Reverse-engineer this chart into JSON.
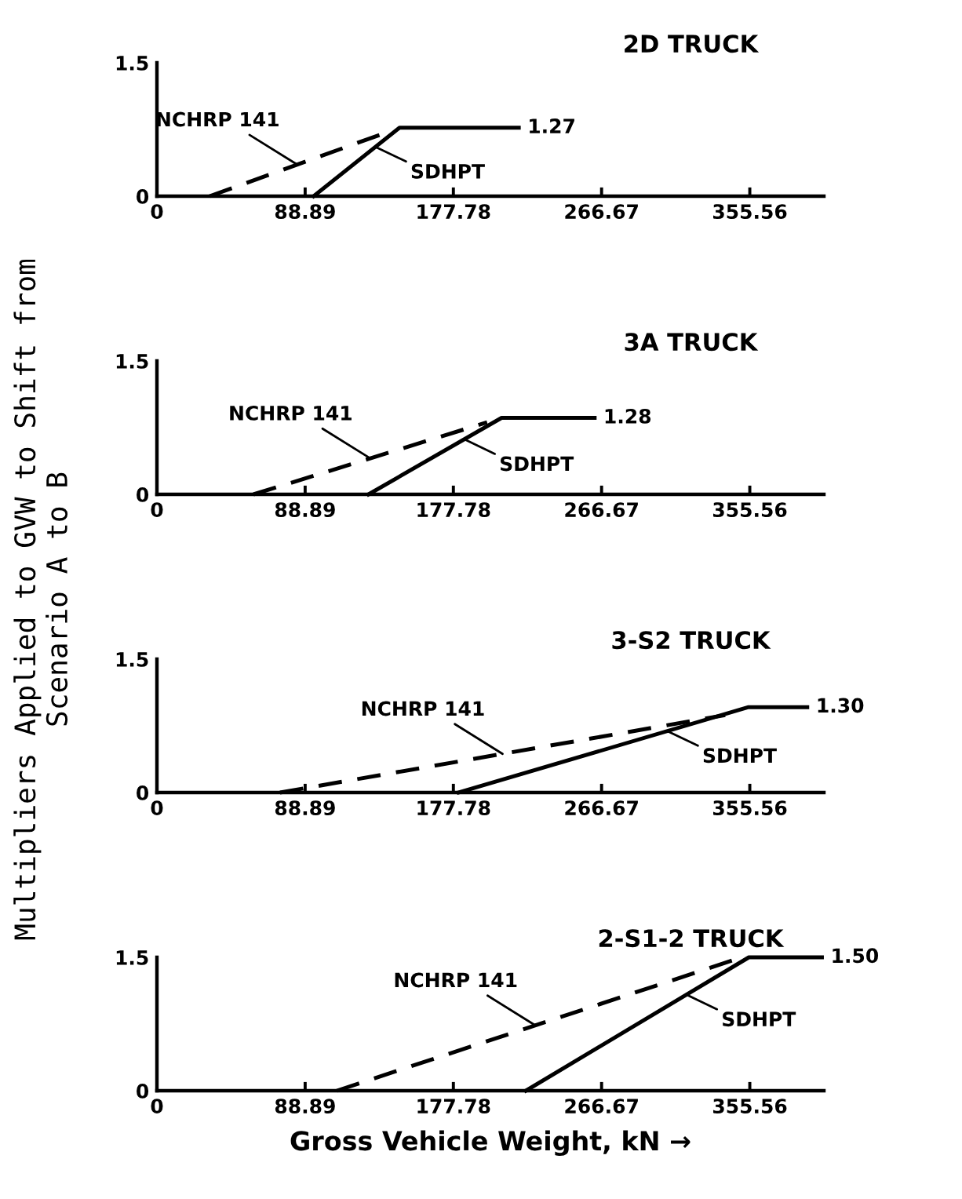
{
  "chart_data": [
    {
      "type": "line",
      "title": "2D TRUCK",
      "ylabel": "Multipliers Applied to GVW to Shift from\nScenario A to B",
      "xlim": [
        0,
        400
      ],
      "xticks": [
        0,
        88.89,
        177.78,
        266.67,
        355.56
      ],
      "ylim": [
        0,
        1.5
      ],
      "yticks": [
        0,
        1.5
      ],
      "grid": false,
      "legend": false,
      "series": [
        {
          "name": "NCHRP 141",
          "color": "#000000",
          "line_style": "dashed",
          "x": [
            31.6,
            136.7
          ],
          "values": [
            0,
            0.71
          ]
        },
        {
          "name": "SDHPT",
          "color": "#000000",
          "line_style": "solid",
          "x": [
            94,
            145.5,
            217
          ],
          "values": [
            0,
            0.77,
            0.77
          ]
        }
      ],
      "annotations": [
        {
          "text": "1.27",
          "x": 217,
          "y": 0.77
        }
      ]
    },
    {
      "type": "line",
      "title": "3A TRUCK",
      "xlim": [
        0,
        400
      ],
      "xticks": [
        0,
        88.89,
        177.78,
        266.67,
        355.56
      ],
      "ylim": [
        0,
        1.5
      ],
      "yticks": [
        0,
        1.5
      ],
      "grid": false,
      "legend": false,
      "series": [
        {
          "name": "NCHRP 141",
          "color": "#000000",
          "line_style": "dashed",
          "x": [
            57.9,
            198
          ],
          "values": [
            0,
            0.81
          ]
        },
        {
          "name": "SDHPT",
          "color": "#000000",
          "line_style": "solid",
          "x": [
            126.9,
            206.7,
            262.5
          ],
          "values": [
            0,
            0.86,
            0.86
          ]
        }
      ],
      "annotations": [
        {
          "text": "1.28",
          "x": 262.5,
          "y": 0.86
        }
      ]
    },
    {
      "type": "line",
      "title": "3-S2 TRUCK",
      "xlim": [
        0,
        400
      ],
      "xticks": [
        0,
        88.89,
        177.78,
        266.67,
        355.56
      ],
      "ylim": [
        0,
        1.5
      ],
      "yticks": [
        0,
        1.5
      ],
      "grid": false,
      "legend": false,
      "series": [
        {
          "name": "NCHRP 141",
          "color": "#000000",
          "line_style": "dashed",
          "x": [
            73.8,
            340.8
          ],
          "values": [
            0,
            0.87
          ]
        },
        {
          "name": "SDHPT",
          "color": "#000000",
          "line_style": "solid",
          "x": [
            181,
            354.8,
            390
          ],
          "values": [
            0,
            0.96,
            0.96
          ]
        }
      ],
      "annotations": [
        {
          "text": "1.30",
          "x": 390,
          "y": 0.96
        }
      ]
    },
    {
      "type": "line",
      "title": "2-S1-2 TRUCK",
      "xlabel": "Gross Vehicle Weight, kN →",
      "xlim": [
        0,
        400
      ],
      "xticks": [
        0,
        88.89,
        177.78,
        266.67,
        355.56
      ],
      "ylim": [
        0,
        1.5
      ],
      "yticks": [
        0,
        1.5
      ],
      "grid": false,
      "legend": false,
      "series": [
        {
          "name": "NCHRP 141",
          "color": "#000000",
          "line_style": "dashed",
          "x": [
            107.9,
            346
          ],
          "values": [
            0,
            1.47
          ]
        },
        {
          "name": "SDHPT",
          "color": "#000000",
          "line_style": "solid",
          "x": [
            221.3,
            355,
            398.8
          ],
          "values": [
            0,
            1.5,
            1.5
          ]
        }
      ],
      "annotations": [
        {
          "text": "1.50",
          "x": 398.8,
          "y": 1.5
        }
      ]
    }
  ]
}
